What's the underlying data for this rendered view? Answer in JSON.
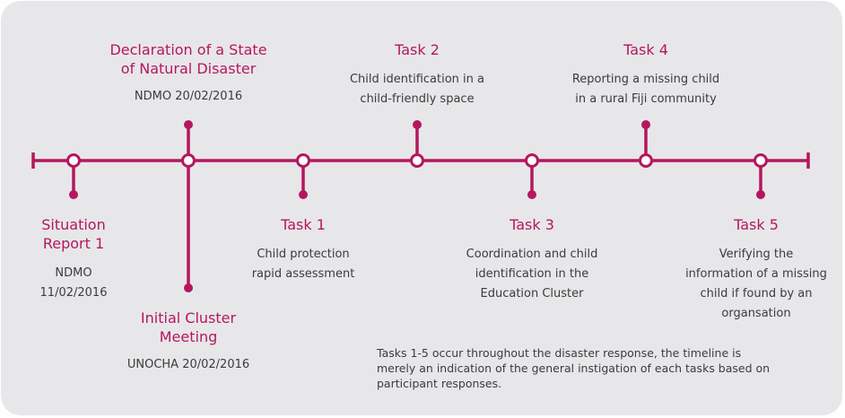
{
  "colors": {
    "accent": "#b5175f",
    "panel": "#e7e6e8",
    "text": "#3c3c3c"
  },
  "events": [
    {
      "title": "Situation Report 1",
      "title_lines": [
        "Situation",
        "Report 1"
      ],
      "detail_lines": [
        "NDMO",
        "11/02/2016"
      ]
    },
    {
      "title": "Declaration of a State of Natural Disaster",
      "title_lines": [
        "Declaration of a State",
        "of Natural Disaster"
      ],
      "detail_lines": [
        "NDMO 20/02/2016"
      ]
    },
    {
      "title": "Initial Cluster Meeting",
      "title_lines": [
        "Initial Cluster",
        "Meeting"
      ],
      "detail_lines": [
        "UNOCHA 20/02/2016"
      ]
    },
    {
      "title": "Task 1",
      "title_lines": [
        "Task 1"
      ],
      "detail_lines": [
        "Child protection",
        "rapid assessment"
      ]
    },
    {
      "title": "Task 2",
      "title_lines": [
        "Task 2"
      ],
      "detail_lines": [
        "Child identification in a",
        "child-friendly space"
      ]
    },
    {
      "title": "Task 3",
      "title_lines": [
        "Task 3"
      ],
      "detail_lines": [
        "Coordination and child",
        "identification in the",
        "Education Cluster"
      ]
    },
    {
      "title": "Task 4",
      "title_lines": [
        "Task 4"
      ],
      "detail_lines": [
        "Reporting a missing child",
        "in a rural Fiji community"
      ]
    },
    {
      "title": "Task 5",
      "title_lines": [
        "Task 5"
      ],
      "detail_lines": [
        "Verifying the",
        "information of a missing",
        "child if found by an",
        "organsation"
      ]
    }
  ],
  "note_lines": [
    "Tasks 1-5 occur throughout the disaster response, the timeline is",
    "merely an indication of the general instigation of each tasks based on",
    "participant responses."
  ]
}
